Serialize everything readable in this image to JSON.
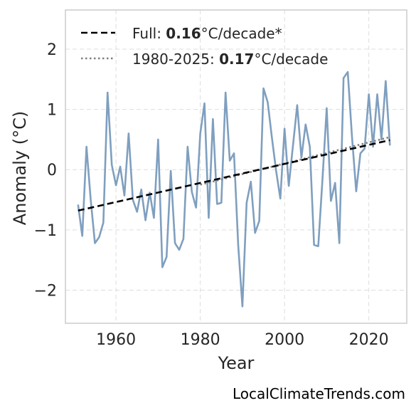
{
  "chart_data": {
    "type": "line",
    "xlabel": "Year",
    "ylabel": "Anomaly (°C)",
    "xlim": [
      1948,
      2029
    ],
    "ylim": [
      -2.55,
      2.65
    ],
    "xticks": [
      1960,
      1980,
      2000,
      2020
    ],
    "yticks": [
      -2,
      -1,
      0,
      1,
      2
    ],
    "ytick_labels": [
      "−2",
      "−1",
      "0",
      "1",
      "2"
    ],
    "grid": true,
    "legend_position": "top-left",
    "colors": {
      "anomaly": "#7f9fbf",
      "full_trend": "#000000",
      "recent_trend": "#808080"
    },
    "series": [
      {
        "kind": "anomaly",
        "x": [
          1951,
          1952,
          1953,
          1954,
          1955,
          1956,
          1957,
          1958,
          1959,
          1960,
          1961,
          1962,
          1963,
          1964,
          1965,
          1966,
          1967,
          1968,
          1969,
          1970,
          1971,
          1972,
          1973,
          1974,
          1975,
          1976,
          1977,
          1978,
          1979,
          1980,
          1981,
          1982,
          1983,
          1984,
          1985,
          1986,
          1987,
          1988,
          1989,
          1990,
          1991,
          1992,
          1993,
          1994,
          1995,
          1996,
          1997,
          1998,
          1999,
          2000,
          2001,
          2002,
          2003,
          2004,
          2005,
          2006,
          2007,
          2008,
          2009,
          2010,
          2011,
          2012,
          2013,
          2014,
          2015,
          2016,
          2017,
          2018,
          2019,
          2020,
          2021,
          2022,
          2023,
          2024,
          2025
        ],
        "values": [
          -0.58,
          -1.1,
          0.38,
          -0.5,
          -1.22,
          -1.12,
          -0.88,
          1.28,
          0.08,
          -0.26,
          0.05,
          -0.43,
          0.6,
          -0.5,
          -0.7,
          -0.33,
          -0.84,
          -0.38,
          -0.8,
          0.5,
          -1.62,
          -1.45,
          -0.02,
          -1.22,
          -1.33,
          -1.15,
          0.38,
          -0.37,
          -0.63,
          0.6,
          1.1,
          -0.8,
          0.84,
          -0.57,
          -0.55,
          1.28,
          0.15,
          0.27,
          -1.25,
          -2.27,
          -0.55,
          -0.2,
          -1.05,
          -0.85,
          1.35,
          1.12,
          0.53,
          -0.02,
          -0.48,
          0.68,
          -0.27,
          0.4,
          1.07,
          0.2,
          0.75,
          0.38,
          -1.25,
          -1.27,
          -0.16,
          1.02,
          -0.52,
          -0.22,
          -1.22,
          1.52,
          1.62,
          0.55,
          -0.36,
          0.27,
          0.35,
          1.25,
          0.38,
          1.25,
          0.5,
          1.47,
          0.4
        ]
      },
      {
        "kind": "full_trend",
        "name": "Full: 0.16°C/decade*",
        "x": [
          1951,
          2025
        ],
        "values": [
          -0.68,
          0.49
        ]
      },
      {
        "kind": "recent_trend",
        "name": "1980-2025: 0.17°C/decade",
        "x": [
          1980,
          2025
        ],
        "values": [
          -0.25,
          0.54
        ]
      }
    ],
    "legend": [
      {
        "prefix": "Full: ",
        "value": "0.16",
        "suffix": "°C/decade*",
        "style": "dashed"
      },
      {
        "prefix": "1980-2025: ",
        "value": "0.17",
        "suffix": "°C/decade",
        "style": "dotted"
      }
    ]
  },
  "watermark": "LocalClimateTrends.com"
}
